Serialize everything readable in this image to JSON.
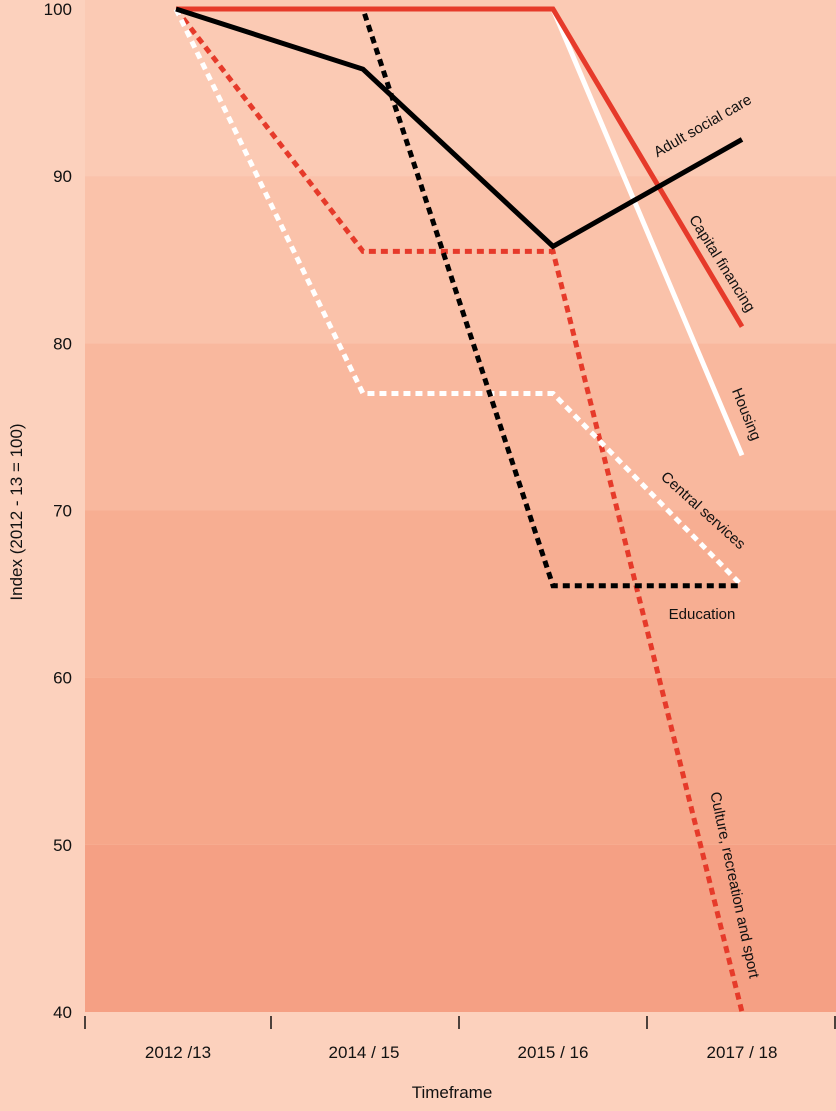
{
  "chart_data": {
    "type": "line",
    "title": "",
    "xlabel": "Timeframe",
    "ylabel": "Index (2012 - 13 = 100)",
    "categories": [
      "2012 /13",
      "2014 / 15",
      "2015 / 16",
      "2017 / 18"
    ],
    "ylim": [
      40,
      100
    ],
    "yticks": [
      "40",
      "50",
      "60",
      "70",
      "80",
      "90",
      "100"
    ],
    "grid": false,
    "legend": "none",
    "series": [
      {
        "name": "Adult social care",
        "values": [
          100,
          96.4,
          85.8,
          92.2
        ],
        "color": "#000000",
        "dash": "solid"
      },
      {
        "name": "Capital financing",
        "values": [
          100,
          100,
          100,
          81.0
        ],
        "color": "#e63a2a",
        "dash": "solid"
      },
      {
        "name": "Housing",
        "values": [
          100,
          100,
          100,
          73.3
        ],
        "color": "#ffffff",
        "dash": "solid"
      },
      {
        "name": "Central services",
        "values": [
          100,
          77.0,
          77.0,
          65.5
        ],
        "color": "#ffffff",
        "dash": "dotted"
      },
      {
        "name": "Education",
        "values": [
          100,
          100,
          65.5,
          65.5
        ],
        "color": "#000000",
        "dash": "dotted"
      },
      {
        "name": "Culture, recreation and sport",
        "values": [
          100,
          85.5,
          85.5,
          40
        ],
        "color": "#e63a2a",
        "dash": "dotted"
      }
    ]
  }
}
